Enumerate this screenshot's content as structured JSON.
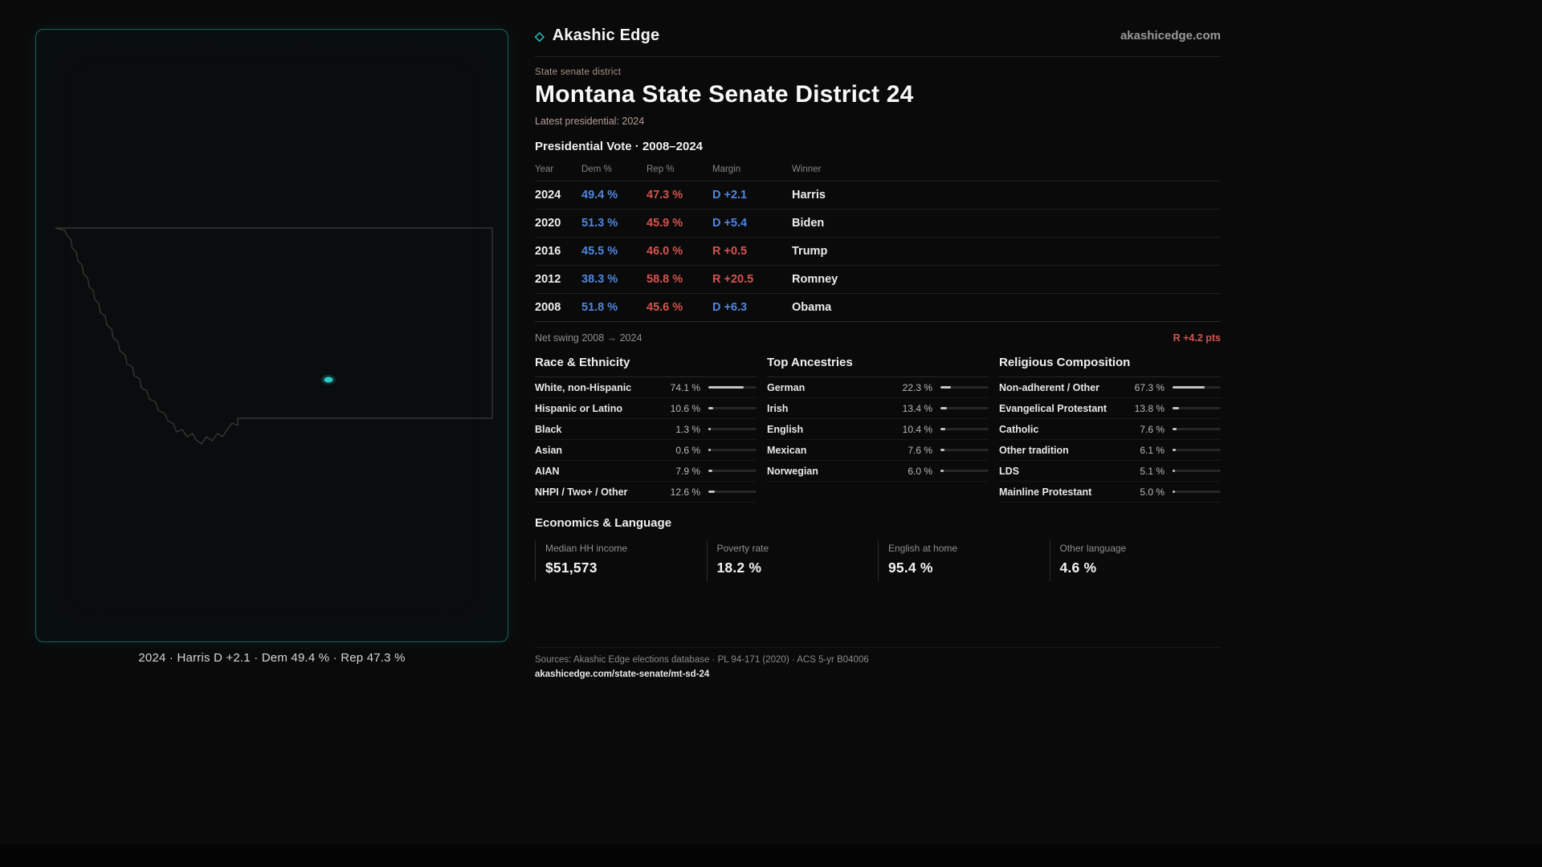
{
  "colors": {
    "dem": "#4f86e0",
    "rep": "#d4544e",
    "accent": "#2cc7c7"
  },
  "header": {
    "brand_icon": "◇",
    "brand": "Akashic Edge",
    "site": "akashicedge.com"
  },
  "title_block": {
    "eyebrow": "State senate district",
    "title": "Montana State Senate District 24",
    "subtitle": "Latest presidential: 2024"
  },
  "map": {
    "caption": "2024 · Harris D +2.1 · Dem 49.4 % · Rep 47.3 %"
  },
  "vote_table": {
    "heading": "Presidential Vote · 2008–2024",
    "columns": [
      "Year",
      "Dem %",
      "Rep %",
      "Margin",
      "Winner"
    ],
    "rows": [
      {
        "year": "2024",
        "dem": "49.4 %",
        "rep": "47.3 %",
        "margin": "D +2.1",
        "margin_party": "D",
        "winner": "Harris"
      },
      {
        "year": "2020",
        "dem": "51.3 %",
        "rep": "45.9 %",
        "margin": "D +5.4",
        "margin_party": "D",
        "winner": "Biden"
      },
      {
        "year": "2016",
        "dem": "45.5 %",
        "rep": "46.0 %",
        "margin": "R +0.5",
        "margin_party": "R",
        "winner": "Trump"
      },
      {
        "year": "2012",
        "dem": "38.3 %",
        "rep": "58.8 %",
        "margin": "R +20.5",
        "margin_party": "R",
        "winner": "Romney"
      },
      {
        "year": "2008",
        "dem": "51.8 %",
        "rep": "45.6 %",
        "margin": "D +6.3",
        "margin_party": "D",
        "winner": "Obama"
      }
    ],
    "net_swing_label": "Net swing 2008 → 2024",
    "net_swing_value": "R +4.2 pts"
  },
  "demographics": [
    {
      "heading": "Race & Ethnicity",
      "rows": [
        {
          "label": "White, non-Hispanic",
          "pct": 74.1,
          "text": "74.1 %"
        },
        {
          "label": "Hispanic or Latino",
          "pct": 10.6,
          "text": "10.6 %"
        },
        {
          "label": "Black",
          "pct": 1.3,
          "text": "1.3 %"
        },
        {
          "label": "Asian",
          "pct": 0.6,
          "text": "0.6 %"
        },
        {
          "label": "AIAN",
          "pct": 7.9,
          "text": "7.9 %"
        },
        {
          "label": "NHPI / Two+ / Other",
          "pct": 12.6,
          "text": "12.6 %"
        }
      ]
    },
    {
      "heading": "Top Ancestries",
      "rows": [
        {
          "label": "German",
          "pct": 22.3,
          "text": "22.3 %"
        },
        {
          "label": "Irish",
          "pct": 13.4,
          "text": "13.4 %"
        },
        {
          "label": "English",
          "pct": 10.4,
          "text": "10.4 %"
        },
        {
          "label": "Mexican",
          "pct": 7.6,
          "text": "7.6 %"
        },
        {
          "label": "Norwegian",
          "pct": 6.0,
          "text": "6.0 %"
        }
      ]
    },
    {
      "heading": "Religious Composition",
      "rows": [
        {
          "label": "Non-adherent / Other",
          "pct": 67.3,
          "text": "67.3 %"
        },
        {
          "label": "Evangelical Protestant",
          "pct": 13.8,
          "text": "13.8 %"
        },
        {
          "label": "Catholic",
          "pct": 7.6,
          "text": "7.6 %"
        },
        {
          "label": "Other tradition",
          "pct": 6.1,
          "text": "6.1 %"
        },
        {
          "label": "LDS",
          "pct": 5.1,
          "text": "5.1 %"
        },
        {
          "label": "Mainline Protestant",
          "pct": 5.0,
          "text": "5.0 %"
        }
      ]
    }
  ],
  "economics": {
    "heading": "Economics & Language",
    "stats": [
      {
        "label": "Median HH income",
        "value": "$51,573"
      },
      {
        "label": "Poverty rate",
        "value": "18.2 %"
      },
      {
        "label": "English at home",
        "value": "95.4 %"
      },
      {
        "label": "Other language",
        "value": "4.6 %"
      }
    ]
  },
  "footer": {
    "sources": "Sources: Akashic Edge elections database · PL 94-171 (2020) · ACS 5-yr B04006",
    "permalink": "akashicedge.com/state-senate/mt-sd-24"
  }
}
